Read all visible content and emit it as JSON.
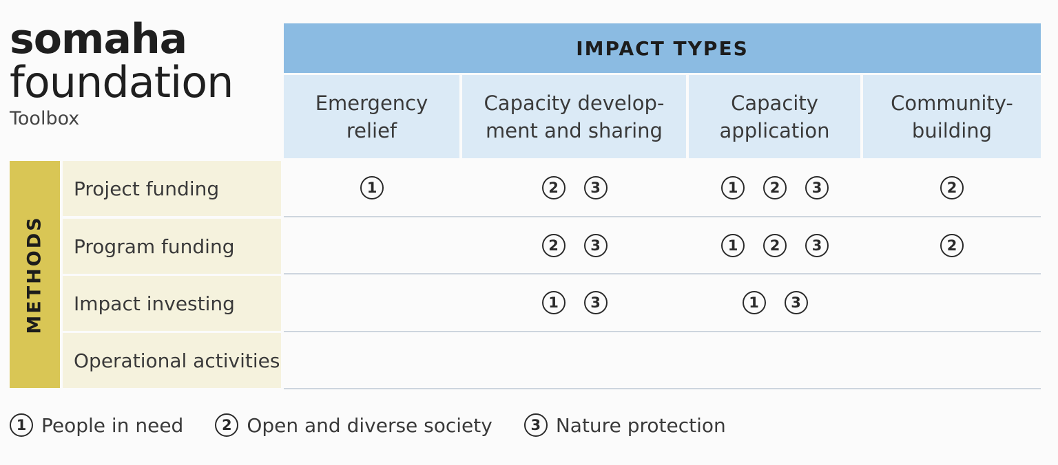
{
  "brand": {
    "line1": "somaha",
    "line2": "foundation",
    "subtitle": "Toolbox"
  },
  "impact_header": "IMPACT TYPES",
  "impact_types": [
    "Emergency\nrelief",
    "Capacity develop-\nment and sharing",
    "Capacity\napplication",
    "Community-\nbuilding"
  ],
  "methods_label": "METHODS",
  "methods": [
    "Project funding",
    "Program funding",
    "Impact investing",
    "Operational activities"
  ],
  "matrix": [
    [
      [
        1
      ],
      [
        2,
        3
      ],
      [
        1,
        2,
        3
      ],
      [
        2
      ]
    ],
    [
      [],
      [
        2,
        3
      ],
      [
        1,
        2,
        3
      ],
      [
        2
      ]
    ],
    [
      [],
      [
        1,
        3
      ],
      [
        1,
        3
      ],
      []
    ],
    [
      [],
      [],
      [],
      []
    ]
  ],
  "legend": [
    {
      "num": "1",
      "label": "People in need"
    },
    {
      "num": "2",
      "label": "Open and diverse society"
    },
    {
      "num": "3",
      "label": "Nature protection"
    }
  ],
  "colors": {
    "impact_header": "#8bbbe2",
    "impact_cell": "#dbeaf6",
    "methods_bar": "#d9c655",
    "method_cell": "#f5f2dd"
  }
}
